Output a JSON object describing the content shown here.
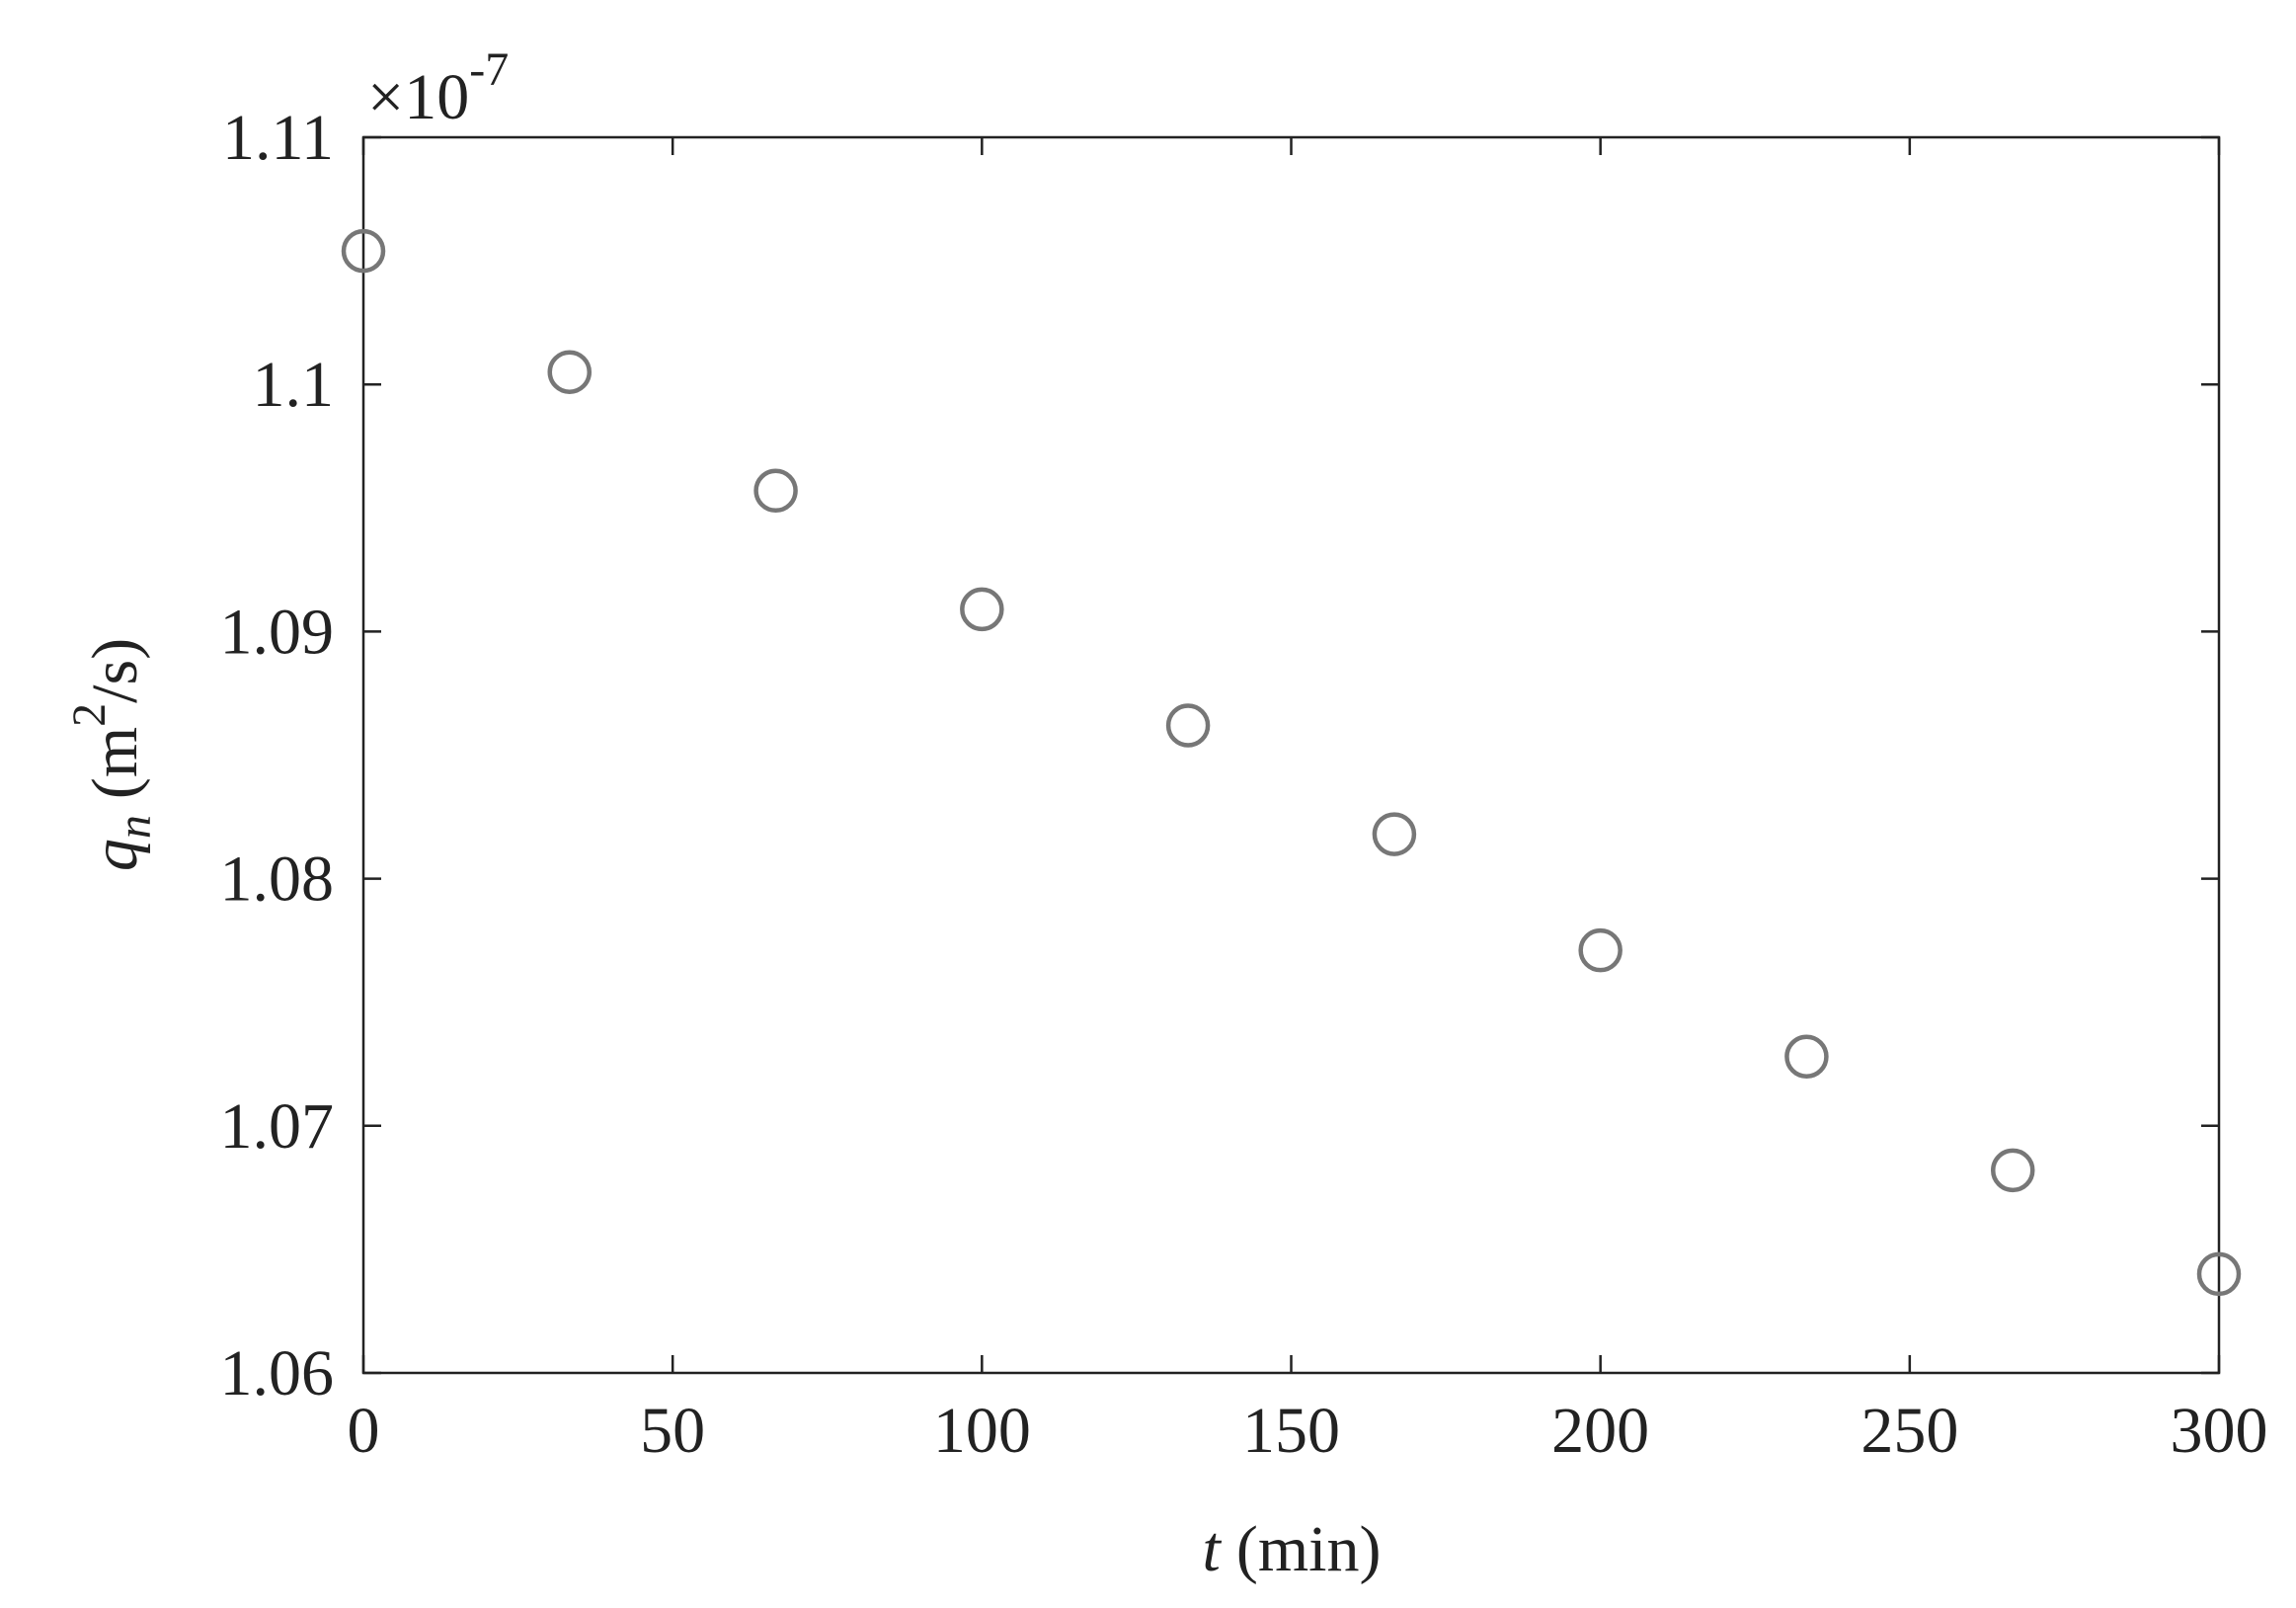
{
  "chart_data": {
    "type": "scatter",
    "multiplier": {
      "base": "×10",
      "exponent": "-7"
    },
    "xlabel": {
      "symbol": "t",
      "unit": "(min)"
    },
    "ylabel": {
      "symbol": "q",
      "subscript": "n",
      "unit_start": "(m",
      "unit_exponent": "2",
      "unit_end": "/s)"
    },
    "x": [
      0,
      33.33,
      66.67,
      100,
      133.33,
      166.67,
      200,
      233.33,
      266.67,
      300
    ],
    "values": [
      1.1054,
      1.1005,
      1.0957,
      1.0909,
      1.0862,
      1.0818,
      1.0771,
      1.0728,
      1.0682,
      1.064
    ],
    "color": "#777777",
    "xlim": [
      0,
      300
    ],
    "xticks": [
      0,
      50,
      100,
      150,
      200,
      250,
      300
    ],
    "ylim": [
      1.06,
      1.11
    ],
    "yticks": [
      1.06,
      1.07,
      1.08,
      1.09,
      1.1,
      1.11
    ]
  }
}
